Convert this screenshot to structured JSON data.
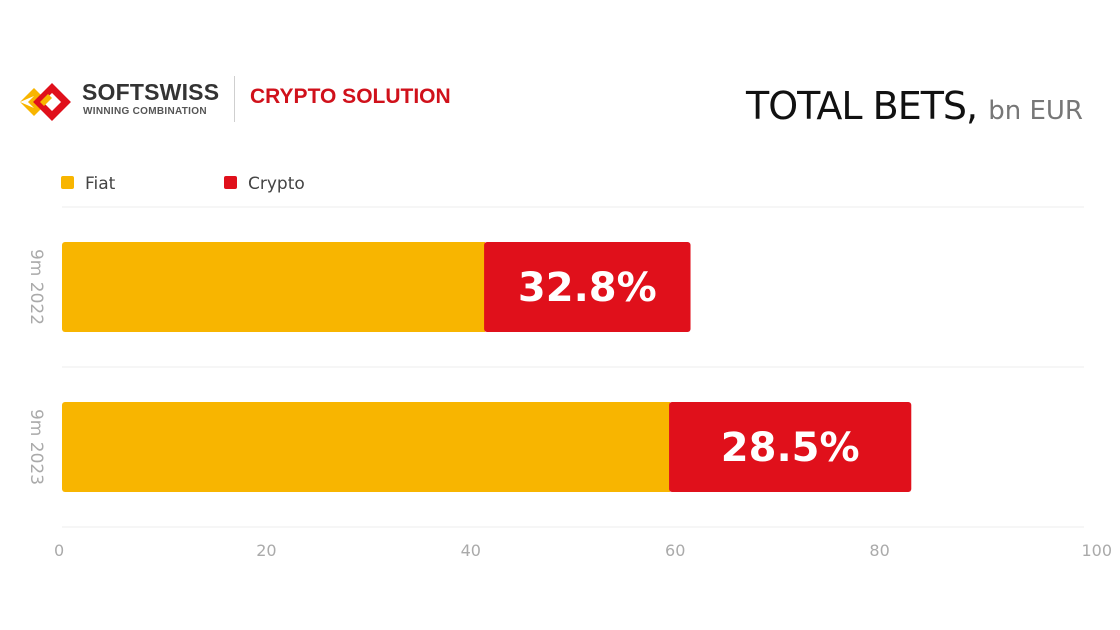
{
  "logo": {
    "brand": "SOFTSWISS",
    "tagline": "WINNING COMBINATION",
    "product": "CRYPTO SOLUTION"
  },
  "chart_data": {
    "type": "bar",
    "orientation": "horizontal",
    "stacked": true,
    "title": "TOTAL BETS,",
    "title_unit": "bn EUR",
    "xlabel": "",
    "ylabel": "",
    "categories": [
      "9m 2022",
      "9m 2023"
    ],
    "series": [
      {
        "name": "Fiat",
        "color": "#f8b500",
        "values": [
          41.3,
          59.4
        ]
      },
      {
        "name": "Crypto",
        "color": "#e0101b",
        "values": [
          20.2,
          23.7
        ]
      }
    ],
    "data_labels": [
      "32.8%",
      "28.5%"
    ],
    "xlim": [
      0,
      100
    ],
    "xticks": [
      "0",
      "20",
      "40",
      "60",
      "80",
      "100"
    ],
    "grid": true,
    "legend": "top-left"
  }
}
